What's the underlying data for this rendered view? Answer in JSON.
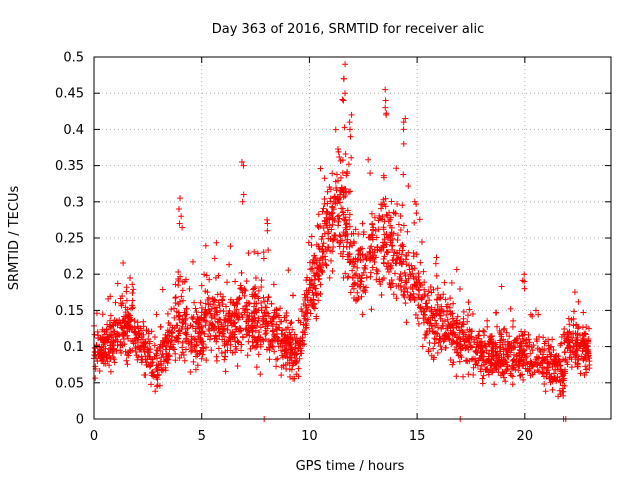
{
  "chart_data": {
    "type": "scatter",
    "title": "Day 363 of 2016, SRMTID for receiver alic",
    "xlabel": "GPS time / hours",
    "ylabel": "SRMTID / TECUs",
    "xlim": [
      0,
      24
    ],
    "ylim": [
      0,
      0.5
    ],
    "x_ticks": [
      0,
      5,
      10,
      15,
      20
    ],
    "y_ticks": [
      0,
      0.05,
      0.1,
      0.15,
      0.2,
      0.25,
      0.3,
      0.35,
      0.4,
      0.45,
      0.5
    ],
    "grid": true,
    "marker": "+",
    "series": [
      {
        "name": "SRMTID",
        "color": "#ff0000",
        "envelope": [
          {
            "hour": 0.0,
            "base": 0.09,
            "spread": 0.025
          },
          {
            "hour": 1.0,
            "base": 0.11,
            "spread": 0.03
          },
          {
            "hour": 1.5,
            "base": 0.13,
            "spread": 0.04
          },
          {
            "hour": 2.0,
            "base": 0.11,
            "spread": 0.03
          },
          {
            "hour": 3.0,
            "base": 0.07,
            "spread": 0.03
          },
          {
            "hour": 3.5,
            "base": 0.11,
            "spread": 0.035
          },
          {
            "hour": 4.0,
            "base": 0.14,
            "spread": 0.05
          },
          {
            "hour": 4.5,
            "base": 0.11,
            "spread": 0.035
          },
          {
            "hour": 5.5,
            "base": 0.14,
            "spread": 0.04
          },
          {
            "hour": 6.0,
            "base": 0.12,
            "spread": 0.035
          },
          {
            "hour": 7.0,
            "base": 0.14,
            "spread": 0.045
          },
          {
            "hour": 8.0,
            "base": 0.13,
            "spread": 0.045
          },
          {
            "hour": 9.0,
            "base": 0.1,
            "spread": 0.035
          },
          {
            "hour": 9.5,
            "base": 0.09,
            "spread": 0.03
          },
          {
            "hour": 10.0,
            "base": 0.17,
            "spread": 0.04
          },
          {
            "hour": 10.5,
            "base": 0.22,
            "spread": 0.05
          },
          {
            "hour": 11.0,
            "base": 0.27,
            "spread": 0.06
          },
          {
            "hour": 11.5,
            "base": 0.3,
            "spread": 0.08
          },
          {
            "hour": 12.0,
            "base": 0.22,
            "spread": 0.05
          },
          {
            "hour": 12.5,
            "base": 0.2,
            "spread": 0.045
          },
          {
            "hour": 13.0,
            "base": 0.24,
            "spread": 0.05
          },
          {
            "hour": 13.5,
            "base": 0.24,
            "spread": 0.06
          },
          {
            "hour": 14.0,
            "base": 0.23,
            "spread": 0.06
          },
          {
            "hour": 15.0,
            "base": 0.17,
            "spread": 0.045
          },
          {
            "hour": 15.5,
            "base": 0.14,
            "spread": 0.04
          },
          {
            "hour": 16.0,
            "base": 0.13,
            "spread": 0.04
          },
          {
            "hour": 17.0,
            "base": 0.11,
            "spread": 0.035
          },
          {
            "hour": 18.0,
            "base": 0.09,
            "spread": 0.03
          },
          {
            "hour": 19.0,
            "base": 0.09,
            "spread": 0.03
          },
          {
            "hour": 20.0,
            "base": 0.09,
            "spread": 0.03
          },
          {
            "hour": 21.0,
            "base": 0.08,
            "spread": 0.03
          },
          {
            "hour": 21.8,
            "base": 0.06,
            "spread": 0.025
          },
          {
            "hour": 22.0,
            "base": 0.11,
            "spread": 0.03
          },
          {
            "hour": 23.0,
            "base": 0.09,
            "spread": 0.025
          }
        ],
        "spikes": [
          {
            "x": 4.0,
            "y": [
              0.305,
              0.29,
              0.28,
              0.27
            ]
          },
          {
            "x": 6.9,
            "y": [
              0.355,
              0.35,
              0.31,
              0.3
            ]
          },
          {
            "x": 11.6,
            "y": [
              0.49,
              0.47,
              0.47,
              0.45,
              0.44
            ]
          },
          {
            "x": 11.9,
            "y": [
              0.42,
              0.41,
              0.4,
              0.39
            ]
          },
          {
            "x": 13.5,
            "y": [
              0.455,
              0.44,
              0.43,
              0.42
            ]
          },
          {
            "x": 14.4,
            "y": [
              0.415,
              0.41,
              0.4,
              0.38
            ]
          },
          {
            "x": 8.0,
            "y": [
              0.275,
              0.27,
              0.26
            ]
          },
          {
            "x": 20.0,
            "y": [
              0.2,
              0.19,
              0.18
            ]
          }
        ],
        "zero_points": [
          7.9,
          17.0,
          21.8,
          21.9
        ]
      }
    ]
  }
}
